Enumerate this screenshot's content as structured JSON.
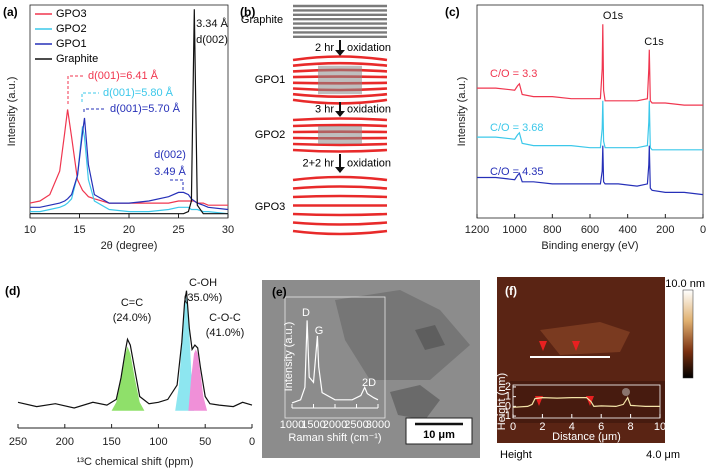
{
  "chart_data": [
    {
      "type": "line",
      "panel_label": "(a)",
      "x_label": "2θ (degree)",
      "y_label": "Intensity (a.u.)",
      "xlim": [
        10,
        30
      ],
      "xticks": [
        10,
        15,
        20,
        25,
        30
      ],
      "ylim": [
        0,
        100
      ],
      "legend": "upper left",
      "x": [
        10,
        11,
        12,
        13,
        13.5,
        13.8,
        14.2,
        14.8,
        15.3,
        15.5,
        15.9,
        16.5,
        18,
        20,
        22,
        24,
        25,
        25.5,
        26,
        26.3,
        26.6,
        26.9,
        27.5,
        28,
        30
      ],
      "series": [
        {
          "name": "GPO3",
          "color": "#f0364f",
          "values": [
            7,
            8,
            11,
            22,
            40,
            51,
            38,
            18,
            13,
            12,
            10,
            9,
            7,
            7,
            7,
            7,
            8,
            8,
            8,
            8,
            8,
            7,
            7,
            6,
            6
          ]
        },
        {
          "name": "GPO2",
          "color": "#3cc8ea",
          "values": [
            3,
            3,
            4,
            5,
            6,
            7,
            9,
            20,
            43,
            38,
            18,
            8,
            4,
            3,
            3,
            4,
            5,
            5,
            5,
            4,
            4,
            4,
            3,
            3,
            2
          ]
        },
        {
          "name": "GPO1",
          "color": "#2630b8",
          "values": [
            5,
            5,
            6,
            7,
            8,
            9,
            11,
            20,
            40,
            47,
            25,
            11,
            7,
            7,
            8,
            10,
            12,
            12,
            11,
            9,
            8,
            7,
            6,
            5,
            4
          ]
        },
        {
          "name": "Graphite",
          "color": "#111111",
          "values": [
            2,
            2,
            2,
            2,
            2,
            2,
            2,
            2,
            2,
            2,
            2,
            2,
            2,
            2,
            2,
            2,
            2,
            2,
            3,
            8,
            98,
            6,
            2,
            2,
            2
          ]
        }
      ],
      "annotations": [
        {
          "text": "3.34 Å",
          "color": "#111111"
        },
        {
          "text": "d(002)",
          "color": "#111111"
        },
        {
          "text": "d(001)=6.41 Å",
          "color": "#f0364f"
        },
        {
          "text": "d(001)=5.80 Å",
          "color": "#3cc8ea"
        },
        {
          "text": "d(001)=5.70 Å",
          "color": "#2630b8"
        },
        {
          "text": "d(002)",
          "color": "#2630b8"
        },
        {
          "text": "3.49 Å",
          "color": "#2630b8"
        }
      ]
    },
    {
      "type": "line",
      "panel_label": "(c)",
      "x_label": "Binding energy (eV)",
      "y_label": "Intensity (a.u.)",
      "xlim": [
        1200,
        0
      ],
      "xticks": [
        1200,
        1000,
        800,
        600,
        400,
        200,
        0
      ],
      "ylim": [
        0,
        100
      ],
      "x": [
        1200,
        1100,
        1000,
        985,
        975,
        960,
        900,
        800,
        700,
        600,
        545,
        535,
        532,
        528,
        520,
        450,
        350,
        295,
        288,
        285,
        280,
        270,
        200,
        100,
        0
      ],
      "series": [
        {
          "color": "#f0364f",
          "values": [
            61,
            61,
            60,
            62,
            63,
            58,
            57,
            57,
            56,
            56,
            56,
            70,
            91,
            60,
            55,
            55,
            55,
            56,
            70,
            79,
            55,
            54,
            54,
            53,
            53
          ]
        },
        {
          "color": "#3cc8ea",
          "values": [
            38,
            38,
            37,
            39,
            40,
            35,
            34,
            34,
            34,
            33,
            33,
            42,
            55,
            36,
            33,
            33,
            33,
            34,
            45,
            55,
            33,
            32,
            32,
            32,
            32
          ]
        },
        {
          "color": "#2630b8",
          "values": [
            19,
            19,
            18,
            20,
            21,
            17,
            17,
            16,
            16,
            16,
            16,
            22,
            34,
            17,
            16,
            16,
            15,
            16,
            25,
            34,
            14,
            13,
            12,
            12,
            11
          ]
        }
      ],
      "annotations": [
        {
          "text": "O1s",
          "color": "#111111"
        },
        {
          "text": "C1s",
          "color": "#111111"
        },
        {
          "text": "C/O = 3.3",
          "color": "#f0364f"
        },
        {
          "text": "C/O = 3.68",
          "color": "#3cc8ea"
        },
        {
          "text": "C/O = 4.35",
          "color": "#2630b8"
        }
      ]
    },
    {
      "type": "line",
      "panel_label": "(d)",
      "x_label": "¹³C chemical shift (ppm)",
      "xlim": [
        250,
        0
      ],
      "xticks": [
        250,
        200,
        150,
        100,
        50,
        0
      ],
      "ylim": [
        0,
        100
      ],
      "x": [
        250,
        230,
        210,
        190,
        170,
        155,
        145,
        140,
        135,
        133,
        130,
        125,
        120,
        110,
        100,
        90,
        80,
        75,
        72,
        70,
        67,
        64,
        61,
        58,
        55,
        50,
        45,
        35,
        20,
        10,
        0
      ],
      "series": [
        {
          "color": "#111111",
          "values": [
            18,
            15,
            17,
            14,
            18,
            16,
            20,
            35,
            55,
            62,
            58,
            40,
            22,
            17,
            18,
            20,
            30,
            60,
            88,
            96,
            70,
            55,
            58,
            56,
            42,
            22,
            17,
            16,
            15,
            18,
            16
          ]
        }
      ],
      "components": [
        {
          "color": "#8fe06a",
          "x": [
            150,
            145,
            140,
            135,
            133,
            130,
            125,
            120,
            115
          ],
          "values": [
            12,
            18,
            34,
            52,
            57,
            52,
            34,
            18,
            12
          ]
        },
        {
          "color": "#8de6f0",
          "x": [
            82,
            78,
            75,
            72,
            70,
            68,
            65,
            62
          ],
          "values": [
            12,
            30,
            60,
            86,
            92,
            80,
            40,
            12
          ]
        },
        {
          "color": "#f090d8",
          "x": [
            68,
            65,
            62,
            60,
            58,
            55,
            52,
            48
          ],
          "values": [
            12,
            35,
            52,
            55,
            52,
            38,
            22,
            12
          ]
        }
      ],
      "annotations": [
        {
          "text": "C=C",
          "color": "#111111"
        },
        {
          "text": "(24.0%)",
          "color": "#111111"
        },
        {
          "text": "C-OH",
          "color": "#111111"
        },
        {
          "text": "(35.0%)",
          "color": "#111111"
        },
        {
          "text": "C-O-C",
          "color": "#111111"
        },
        {
          "text": "(41.0%)",
          "color": "#111111"
        }
      ]
    },
    {
      "type": "line",
      "x_label": "Raman shift (cm⁻¹)",
      "y_label": "Intensity (a.u.)",
      "xlim": [
        1000,
        3000
      ],
      "xticks": [
        1000,
        1500,
        2000,
        2500,
        3000
      ],
      "ylim": [
        0,
        100
      ],
      "x": [
        1000,
        1200,
        1300,
        1350,
        1400,
        1500,
        1560,
        1590,
        1620,
        1700,
        2000,
        2400,
        2600,
        2690,
        2750,
        2900,
        3000
      ],
      "series": [
        {
          "color": "#ffffff",
          "values": [
            5,
            8,
            20,
            85,
            30,
            25,
            55,
            70,
            40,
            15,
            8,
            8,
            12,
            20,
            14,
            10,
            8
          ]
        }
      ],
      "annotations": [
        {
          "text": "D",
          "color": "#ffffff"
        },
        {
          "text": "G",
          "color": "#ffffff"
        },
        {
          "text": "2D",
          "color": "#ffffff"
        }
      ]
    },
    {
      "type": "line",
      "x_label": "Distance (μm)",
      "y_label": "Height (nm)",
      "xlim": [
        0,
        10
      ],
      "xticks": [
        0,
        2,
        4,
        6,
        8,
        10
      ],
      "ylim": [
        -1.2,
        2.2
      ],
      "yticks": [
        -1,
        0,
        1,
        2
      ],
      "x": [
        0,
        1,
        1.3,
        1.5,
        2,
        3,
        4,
        5,
        5.3,
        5.5,
        6,
        7,
        7.5,
        7.8,
        8,
        9,
        10
      ],
      "series": [
        {
          "color": "#f4e4a8",
          "values": [
            -0.1,
            0,
            0.2,
            0.8,
            0.9,
            0.85,
            0.9,
            0.9,
            0.5,
            0,
            0.05,
            0,
            0.2,
            0.9,
            0.1,
            0,
            0
          ]
        }
      ]
    }
  ],
  "scheme": {
    "panel_label": "(b)",
    "stages": [
      "Graphite",
      "GPO1",
      "GPO2",
      "GPO3"
    ],
    "steps": [
      {
        "time": "2 hr",
        "action": "oxidation"
      },
      {
        "time": "3 hr",
        "action": "oxidation"
      },
      {
        "time": "2+2 hr",
        "action": "oxidation"
      }
    ]
  },
  "images": {
    "e": {
      "panel_label": "(e)",
      "scale_bar": "10 μm"
    },
    "f": {
      "panel_label": "(f)",
      "colorbar_max": "10.0 nm",
      "channel": "Height",
      "scan_size": "4.0 μm"
    }
  }
}
